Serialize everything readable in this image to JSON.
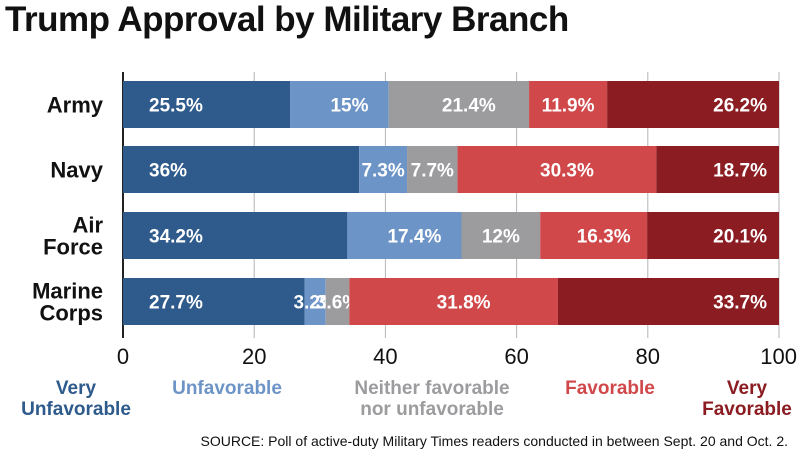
{
  "chart_data": {
    "type": "bar",
    "orientation": "horizontal",
    "stacked": true,
    "title": "Trump Approval by Military Branch",
    "categories": [
      [
        "Army"
      ],
      [
        "Navy"
      ],
      [
        "Air",
        "Force"
      ],
      [
        "Marine",
        "Corps"
      ]
    ],
    "series": [
      {
        "name": [
          "Very",
          "Unfavorable"
        ],
        "color": "#2e5a8c",
        "values": [
          25.5,
          36,
          34.2,
          27.7
        ],
        "labels": [
          "25.5%",
          "36%",
          "34.2%",
          "27.7%"
        ]
      },
      {
        "name": [
          "Unfavorable"
        ],
        "color": "#6d94c7",
        "values": [
          15,
          7.3,
          17.4,
          3.2
        ],
        "labels": [
          "15%",
          "7.3%",
          "17.4%",
          "3.2%"
        ]
      },
      {
        "name": [
          "Neither favorable",
          "nor unfavorable"
        ],
        "color": "#9c9c9f",
        "values": [
          21.4,
          7.7,
          12,
          3.6
        ],
        "labels": [
          "21.4%",
          "7.7%",
          "12%",
          "3.6%"
        ]
      },
      {
        "name": [
          "Favorable"
        ],
        "color": "#d0484a",
        "values": [
          11.9,
          30.3,
          16.3,
          31.8
        ],
        "labels": [
          "11.9%",
          "30.3%",
          "16.3%",
          "31.8%"
        ]
      },
      {
        "name": [
          "Very",
          "Favorable"
        ],
        "color": "#8b1c22",
        "values": [
          26.2,
          18.7,
          20.1,
          33.7
        ],
        "labels": [
          "26.2%",
          "18.7%",
          "20.1%",
          "33.7%"
        ]
      }
    ],
    "xlim": [
      0,
      100
    ],
    "xticks": [
      0,
      20,
      40,
      60,
      80,
      100
    ],
    "grid": true,
    "legend": "bottom",
    "source": "SOURCE: Poll of active-duty Military Times readers conducted in between Sept. 20 and Oct. 2."
  }
}
